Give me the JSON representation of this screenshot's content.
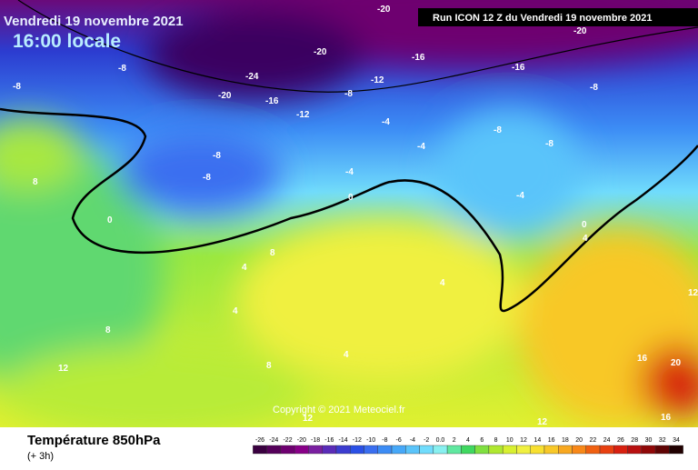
{
  "header": {
    "date": "Vendredi 19 novembre 2021",
    "time": "16:00 locale",
    "run": "Run ICON 12 Z du Vendredi 19 novembre 2021"
  },
  "copyright": "Copyright © 2021 Meteociel.fr",
  "footer": {
    "title": "Température 850hPa",
    "step": "(+ 3h)"
  },
  "legend": {
    "labels": [
      "-26",
      "-24",
      "-22",
      "-20",
      "-18",
      "-16",
      "-14",
      "-12",
      "-10",
      "-8",
      "-6",
      "-4",
      "-2",
      "0.0",
      "2",
      "4",
      "6",
      "8",
      "10",
      "12",
      "14",
      "16",
      "18",
      "20",
      "22",
      "24",
      "26",
      "28",
      "30",
      "32",
      "34"
    ],
    "colors": [
      "#3a0040",
      "#55005a",
      "#6e0070",
      "#880088",
      "#7a1fa0",
      "#5a2cb8",
      "#3c3cd0",
      "#2a50e6",
      "#3a6ef0",
      "#3c8cf5",
      "#46a8f8",
      "#5ac4fa",
      "#70dcfc",
      "#88f0f0",
      "#60e8a0",
      "#40d860",
      "#80e040",
      "#b0e830",
      "#d8f030",
      "#f0f040",
      "#f8e030",
      "#f8c828",
      "#f8a820",
      "#f88818",
      "#f06010",
      "#e84010",
      "#d82010",
      "#b81010",
      "#900808",
      "#600404",
      "#200000"
    ]
  },
  "map_labels": [
    "-8",
    "-8",
    "-20",
    "-24",
    "-16",
    "-12",
    "-12",
    "-16",
    "-16",
    "-8",
    "-8",
    "-4",
    "-4",
    "-8",
    "-8",
    "-8",
    "-8",
    "-4",
    "0",
    "-4",
    "0",
    "4",
    "0",
    "8",
    "8",
    "4",
    "4",
    "8",
    "12",
    "8",
    "4",
    "4",
    "12",
    "12",
    "16",
    "20",
    "16",
    "12",
    "-20",
    "-20",
    "-20"
  ]
}
